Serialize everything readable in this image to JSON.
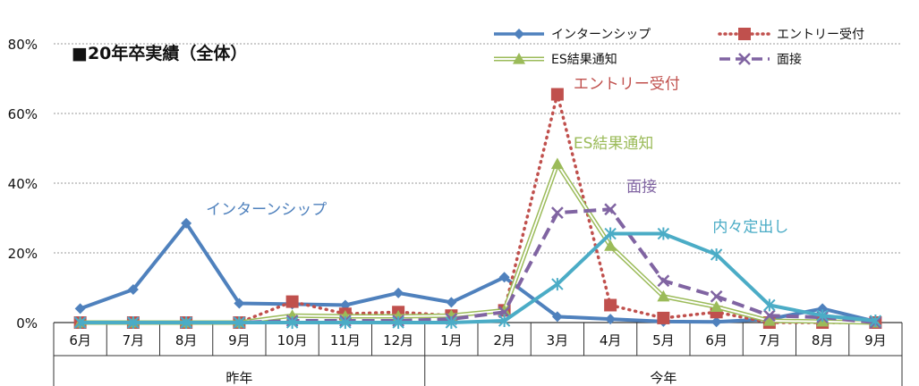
{
  "chart_data": {
    "type": "line",
    "title": "■20年卒実績（全体）",
    "xlabel": "",
    "ylabel": "",
    "ylim": [
      0,
      0.9
    ],
    "yticks": [
      "0%",
      "20%",
      "40%",
      "60%",
      "80%"
    ],
    "categories": [
      "6月",
      "7月",
      "8月",
      "9月",
      "10月",
      "11月",
      "12月",
      "1月",
      "2月",
      "3月",
      "4月",
      "5月",
      "6月",
      "7月",
      "8月",
      "9月"
    ],
    "groups": [
      {
        "label": "昨年",
        "from": 0,
        "to": 6
      },
      {
        "label": "今年",
        "from": 7,
        "to": 15
      }
    ],
    "grid": "horizontal",
    "legend_position": "top-right",
    "series": [
      {
        "name": "インターンシップ",
        "color": "#4f81bd",
        "style": "solid",
        "marker": "diamond",
        "values": [
          0.04,
          0.095,
          0.285,
          0.055,
          0.053,
          0.05,
          0.085,
          0.058,
          0.13,
          0.017,
          0.01,
          0.003,
          0.002,
          0.01,
          0.04,
          0.003
        ]
      },
      {
        "name": "エントリー受付",
        "color": "#c0504d",
        "style": "dotted",
        "marker": "square",
        "values": [
          0.0,
          0.0,
          0.0,
          0.0,
          0.06,
          0.025,
          0.03,
          0.02,
          0.035,
          0.655,
          0.05,
          0.013,
          0.03,
          0.0,
          0.0,
          0.0
        ]
      },
      {
        "name": "ES結果通知",
        "color": "#9bbb59",
        "style": "double",
        "marker": "triangle",
        "values": [
          0.0,
          0.0,
          0.0,
          0.0,
          0.02,
          0.018,
          0.018,
          0.02,
          0.035,
          0.455,
          0.22,
          0.075,
          0.045,
          0.005,
          0.003,
          0.0
        ]
      },
      {
        "name": "面接",
        "color": "#8064a2",
        "style": "dashed",
        "marker": "x",
        "values": [
          0.0,
          0.0,
          0.0,
          0.0,
          0.005,
          0.005,
          0.005,
          0.01,
          0.03,
          0.315,
          0.325,
          0.12,
          0.075,
          0.02,
          0.015,
          0.0
        ]
      },
      {
        "name": "内々定出し",
        "color": "#4bacc6",
        "style": "solid",
        "marker": "asterisk",
        "values": [
          0.0,
          0.0,
          0.0,
          0.0,
          0.0,
          0.0,
          0.0,
          0.0,
          0.005,
          0.11,
          0.255,
          0.255,
          0.195,
          0.05,
          0.02,
          0.005
        ]
      }
    ],
    "annotations": [
      {
        "text": "エントリー受付",
        "color": "#c0504d",
        "anchor": {
          "x": "3月",
          "y": 0.665
        }
      },
      {
        "text": "ES結果通知",
        "color": "#9bbb59",
        "anchor": {
          "x": "3月",
          "y": 0.495
        }
      },
      {
        "text": "面接",
        "color": "#8064a2",
        "anchor": {
          "x": "4月",
          "y": 0.37
        }
      },
      {
        "text": "インターンシップ",
        "color": "#4f81bd",
        "anchor": {
          "x": "8月",
          "y": 0.305
        }
      },
      {
        "text": "内々定出し",
        "color": "#4bacc6",
        "anchor": {
          "x": "5月",
          "y": 0.255
        }
      }
    ],
    "legend": [
      "インターンシップ",
      "エントリー受付",
      "ES結果通知",
      "面接"
    ]
  }
}
